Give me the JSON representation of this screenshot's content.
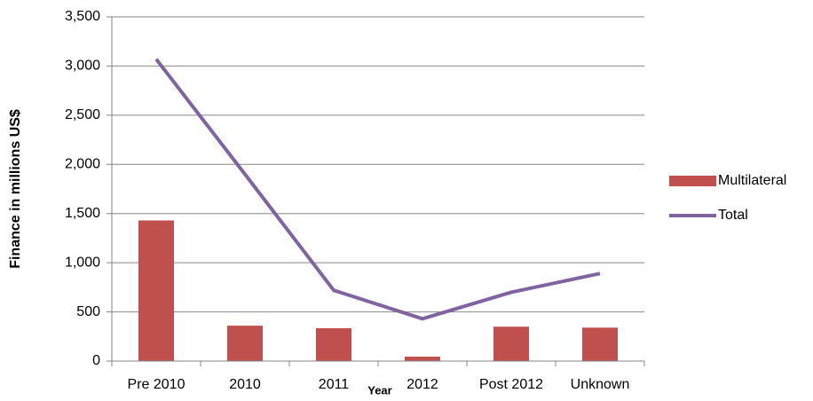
{
  "chart_data": {
    "type": "bar",
    "x_label": "Year",
    "y_label": "Finance in millions US$",
    "categories": [
      "Pre 2010",
      "2010",
      "2011",
      "2012",
      "Post 2012",
      "Unknown"
    ],
    "series": [
      {
        "name": "Multilateral",
        "type": "bar",
        "color": "#c0504d",
        "values": [
          1430,
          360,
          334,
          45,
          350,
          340
        ]
      },
      {
        "name": "Total",
        "type": "line",
        "color": "#8064a2",
        "values": [
          3070,
          1900,
          720,
          430,
          700,
          890
        ]
      }
    ],
    "ylim": [
      0,
      3500
    ],
    "yticks": [
      0,
      500,
      {
        "value": 1000,
        "label": "1,000"
      },
      {
        "value": 1500,
        "label": "1,500"
      },
      {
        "value": 2000,
        "label": "2,000"
      },
      {
        "value": 2500,
        "label": "2,500"
      },
      {
        "value": 3000,
        "label": "3,000"
      },
      {
        "value": 3500,
        "label": "3,500"
      }
    ],
    "grid": true,
    "legend": "right"
  }
}
